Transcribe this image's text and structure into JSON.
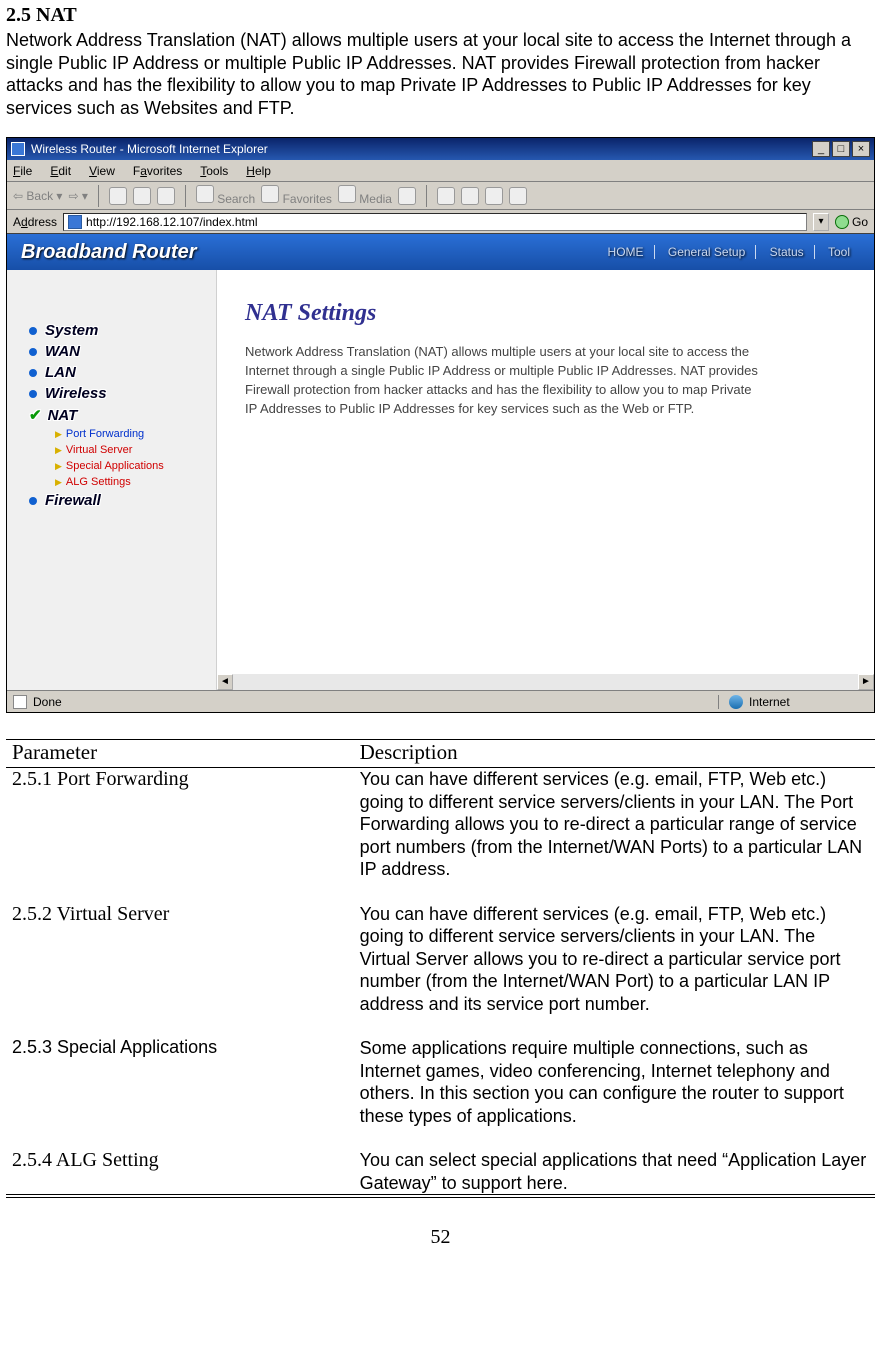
{
  "doc": {
    "heading": "2.5 NAT",
    "intro": "Network Address Translation (NAT) allows multiple users at your local site to access the Internet through a single Public IP Address or multiple Public IP Addresses. NAT provides Firewall protection from hacker attacks and has the flexibility to allow you to map Private IP Addresses to Public IP Addresses for key services such as Websites and FTP.",
    "page_num": "52"
  },
  "ie": {
    "title": "Wireless Router - Microsoft Internet Explorer",
    "menu": {
      "file": "File",
      "edit": "Edit",
      "view": "View",
      "fav": "Favorites",
      "tools": "Tools",
      "help": "Help"
    },
    "toolbar": {
      "back": "Back",
      "search": "Search",
      "favorites": "Favorites",
      "media": "Media"
    },
    "addr_label": "Address",
    "addr_value": "http://192.168.12.107/index.html",
    "go": "Go",
    "status_done": "Done",
    "zone": "Internet"
  },
  "router": {
    "brand": "Broadband Router",
    "nav": [
      "HOME",
      "General Setup",
      "Status",
      "Tool"
    ],
    "sidebar": {
      "system": "System",
      "wan": "WAN",
      "lan": "LAN",
      "wireless": "Wireless",
      "nat": "NAT",
      "subs": {
        "pf": "Port Forwarding",
        "vs": "Virtual Server",
        "sa": "Special Applications",
        "alg": "ALG Settings"
      },
      "firewall": "Firewall"
    },
    "content": {
      "heading": "NAT Settings",
      "text": "Network Address Translation (NAT) allows multiple users at your local site to access the Internet through a single Public IP Address or multiple Public IP Addresses. NAT provides Firewall protection from hacker attacks and has the flexibility to allow you to map Private IP Addresses to Public IP Addresses for key services such as the Web or FTP."
    }
  },
  "table": {
    "h1": "Parameter",
    "h2": "Description",
    "rows": [
      {
        "name": "2.5.1 Port Forwarding",
        "sans": false,
        "desc": "You can have different services (e.g. email, FTP, Web etc.) going to different service servers/clients in your LAN. The Port Forwarding allows you to re-direct a particular range of service port numbers (from the Internet/WAN Ports) to a particular LAN IP address."
      },
      {
        "name": "2.5.2 Virtual Server",
        "sans": false,
        "desc": "You can have different services (e.g. email, FTP, Web etc.) going to different service servers/clients in your LAN. The Virtual Server allows you to re-direct a particular service port number (from the Internet/WAN Port) to a particular LAN IP address and its service port number."
      },
      {
        "name": "2.5.3 Special Applications",
        "sans": true,
        "desc": "Some applications require multiple connections, such as Internet games, video conferencing, Internet telephony and others. In this section you can configure the router to support these types of applications."
      },
      {
        "name": "2.5.4 ALG Setting",
        "sans": false,
        "desc": "You can select special applications that need “Application Layer Gateway” to support here."
      }
    ]
  }
}
